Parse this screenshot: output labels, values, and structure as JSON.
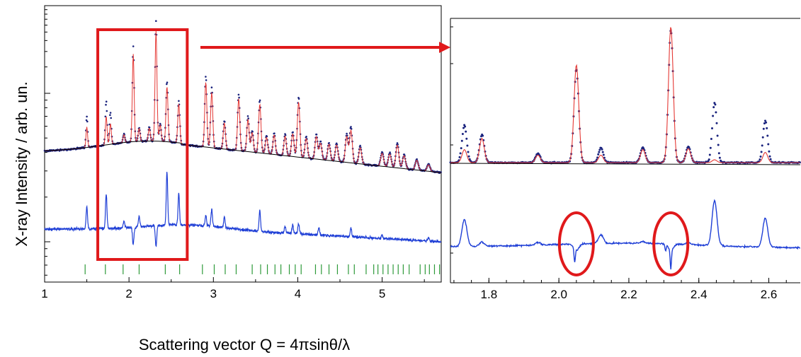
{
  "chart_data": [
    {
      "type": "line",
      "panel": "full-pattern",
      "ylabel": "X-ray Intensity / arb. un.",
      "xlabel": "Scattering vector Q = 4πsinθ/λ",
      "xlim": [
        1,
        5.7
      ],
      "x_ticks": [
        1,
        2,
        3,
        4,
        5
      ],
      "x_tick_labels": [
        "1",
        "2",
        "3",
        "4",
        "5"
      ],
      "y_scale": "log",
      "grid": false,
      "peaks": [
        {
          "x": 1.5,
          "h": 0.45
        },
        {
          "x": 1.73,
          "h": 0.62
        },
        {
          "x": 1.78,
          "h": 0.45
        },
        {
          "x": 1.94,
          "h": 0.12
        },
        {
          "x": 2.05,
          "h": 1.35
        },
        {
          "x": 2.12,
          "h": 0.2
        },
        {
          "x": 2.24,
          "h": 0.2
        },
        {
          "x": 2.32,
          "h": 1.7
        },
        {
          "x": 2.37,
          "h": 0.25
        },
        {
          "x": 2.45,
          "h": 0.85
        },
        {
          "x": 2.59,
          "h": 0.6
        },
        {
          "x": 2.91,
          "h": 1.0
        },
        {
          "x": 2.98,
          "h": 0.85
        },
        {
          "x": 3.13,
          "h": 0.4
        },
        {
          "x": 3.3,
          "h": 0.8
        },
        {
          "x": 3.41,
          "h": 0.5
        },
        {
          "x": 3.46,
          "h": 0.3
        },
        {
          "x": 3.55,
          "h": 0.75
        },
        {
          "x": 3.63,
          "h": 0.25
        },
        {
          "x": 3.72,
          "h": 0.3
        },
        {
          "x": 3.85,
          "h": 0.3
        },
        {
          "x": 3.94,
          "h": 0.35
        },
        {
          "x": 4.01,
          "h": 0.85
        },
        {
          "x": 4.1,
          "h": 0.3
        },
        {
          "x": 4.22,
          "h": 0.35
        },
        {
          "x": 4.27,
          "h": 0.25
        },
        {
          "x": 4.37,
          "h": 0.25
        },
        {
          "x": 4.46,
          "h": 0.25
        },
        {
          "x": 4.58,
          "h": 0.4
        },
        {
          "x": 4.63,
          "h": 0.5
        },
        {
          "x": 4.74,
          "h": 0.25
        },
        {
          "x": 5.0,
          "h": 0.2
        },
        {
          "x": 5.09,
          "h": 0.2
        },
        {
          "x": 5.18,
          "h": 0.35
        },
        {
          "x": 5.26,
          "h": 0.2
        },
        {
          "x": 5.41,
          "h": 0.15
        },
        {
          "x": 5.55,
          "h": 0.1
        }
      ],
      "reflection_ticks": [
        1.48,
        1.72,
        1.93,
        2.12,
        2.43,
        2.6,
        2.87,
        3.01,
        3.14,
        3.27,
        3.46,
        3.56,
        3.64,
        3.73,
        3.8,
        3.9,
        3.97,
        4.04,
        4.21,
        4.28,
        4.37,
        4.47,
        4.6,
        4.67,
        4.81,
        4.9,
        4.95,
        5.01,
        5.07,
        5.13,
        5.19,
        5.25,
        5.32,
        5.45,
        5.51,
        5.56,
        5.62,
        5.68
      ],
      "series": [
        {
          "role": "observed",
          "marker": "dot",
          "color": "#1a237e"
        },
        {
          "role": "calculated",
          "color": "#e53935"
        },
        {
          "role": "background",
          "color": "#000000"
        },
        {
          "role": "difference",
          "color": "#1f3fd6"
        },
        {
          "role": "reflection-ticks",
          "color": "#2e9a3a"
        }
      ],
      "zoom_box": {
        "xlim": [
          1.63,
          2.69
        ],
        "color": "#e0191b"
      }
    },
    {
      "type": "line",
      "panel": "zoom",
      "xlim": [
        1.69,
        2.69
      ],
      "x_ticks": [
        1.8,
        2.0,
        2.2,
        2.4,
        2.6
      ],
      "x_tick_labels": [
        "1.8",
        "2.0",
        "2.2",
        "2.4",
        "2.6"
      ],
      "grid": false,
      "peaks": [
        {
          "x": 1.73,
          "h": 0.4,
          "hc": 0.14,
          "d": 0.32
        },
        {
          "x": 1.78,
          "h": 0.3,
          "hc": 0.26,
          "d": 0.05
        },
        {
          "x": 1.94,
          "h": 0.1,
          "hc": 0.08,
          "d": 0.03
        },
        {
          "x": 2.05,
          "h": 1.0,
          "hc": 1.05,
          "d": -0.08
        },
        {
          "x": 2.12,
          "h": 0.16,
          "hc": 0.08,
          "d": 0.1
        },
        {
          "x": 2.24,
          "h": 0.16,
          "hc": 0.14,
          "d": 0.02
        },
        {
          "x": 2.32,
          "h": 1.42,
          "hc": 1.46,
          "d": -0.07
        },
        {
          "x": 2.37,
          "h": 0.17,
          "hc": 0.15,
          "d": 0.02
        },
        {
          "x": 2.445,
          "h": 0.64,
          "hc": 0.03,
          "d": 0.53
        },
        {
          "x": 2.59,
          "h": 0.45,
          "hc": 0.11,
          "d": 0.34
        }
      ],
      "dips": [
        {
          "x": 2.045,
          "depth": 0.15
        },
        {
          "x": 2.32,
          "depth": 0.22
        },
        {
          "x": 2.305,
          "depth": 0.08
        }
      ],
      "highlight_circles": [
        {
          "x": 2.05,
          "color": "#e0191b"
        },
        {
          "x": 2.32,
          "color": "#e0191b"
        }
      ]
    }
  ]
}
